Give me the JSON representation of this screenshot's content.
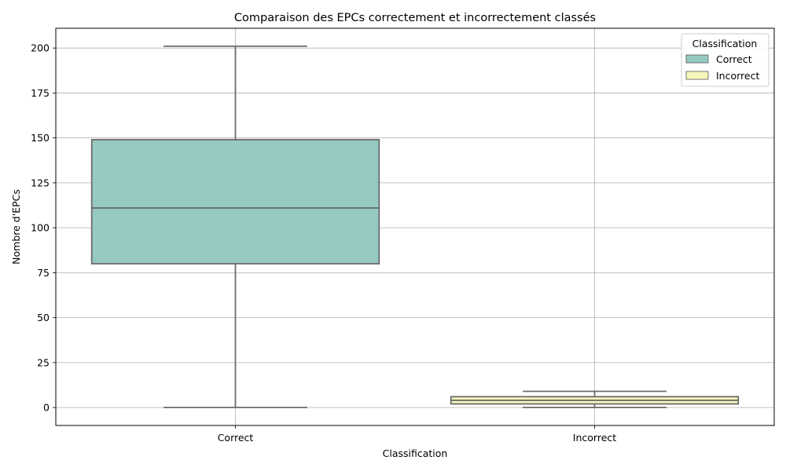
{
  "chart_data": {
    "type": "box",
    "title": "Comparaison des EPCs correctement et incorrectement classés",
    "xlabel": "Classification",
    "ylabel": "Nombre d'EPCs",
    "ylim": [
      -10,
      211
    ],
    "yticks": [
      0,
      25,
      50,
      75,
      100,
      125,
      150,
      175,
      200
    ],
    "grid": true,
    "categories": [
      "Correct",
      "Incorrect"
    ],
    "boxes": [
      {
        "name": "Correct",
        "min": 0,
        "q1": 80,
        "median": 111,
        "q3": 149,
        "max": 201,
        "color": "#96cac1"
      },
      {
        "name": "Incorrect",
        "min": 0,
        "q1": 2,
        "median": 4,
        "q3": 6,
        "max": 9,
        "color": "#f6f6bc"
      }
    ],
    "legend": {
      "title": "Classification",
      "placement": "top-right",
      "entries": [
        {
          "label": "Correct",
          "color": "#96cac1"
        },
        {
          "label": "Incorrect",
          "color": "#f6f6bc"
        }
      ]
    }
  }
}
